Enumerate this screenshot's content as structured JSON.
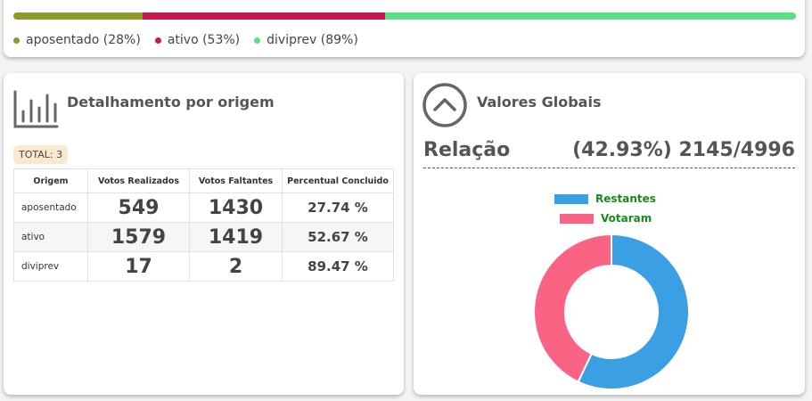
{
  "status_bar": {
    "segments": [
      {
        "name": "aposentado",
        "color": "#8e9a2c",
        "fraction": 0.165
      },
      {
        "name": "ativo",
        "color": "#c41a4e",
        "fraction": 0.31
      },
      {
        "name": "diviprev",
        "color": "#5ddb86",
        "fraction": 0.525
      }
    ],
    "legend": [
      {
        "label": "aposentado (28%)",
        "color": "#8e9a2c"
      },
      {
        "label": "ativo (53%)",
        "color": "#c41a4e"
      },
      {
        "label": "diviprev (89%)",
        "color": "#5ddb86"
      }
    ]
  },
  "detail_card": {
    "icon": "bar-chart-icon",
    "title": "Detalhamento por origem",
    "total_label": "TOTAL: 3",
    "columns": [
      "Origem",
      "Votos Realizados",
      "Votos Faltantes",
      "Percentual Concluido"
    ],
    "rows": [
      {
        "origem": "aposentado",
        "realizados": "549",
        "faltantes": "1430",
        "percentual": "27.74 %"
      },
      {
        "origem": "ativo",
        "realizados": "1579",
        "faltantes": "1419",
        "percentual": "52.67 %"
      },
      {
        "origem": "diviprev",
        "realizados": "17",
        "faltantes": "2",
        "percentual": "89.47 %"
      }
    ]
  },
  "global_card": {
    "icon": "chevron-up-circle-icon",
    "title": "Valores Globais",
    "relacao_label": "Relação",
    "relacao_value": "(42.93%) 2145/4996",
    "legend": [
      {
        "label": "Restantes",
        "color": "#3a9fe3"
      },
      {
        "label": "Votaram",
        "color": "#fb6384"
      }
    ],
    "donut": {
      "restantes": 2851,
      "votaram": 2145
    }
  }
}
